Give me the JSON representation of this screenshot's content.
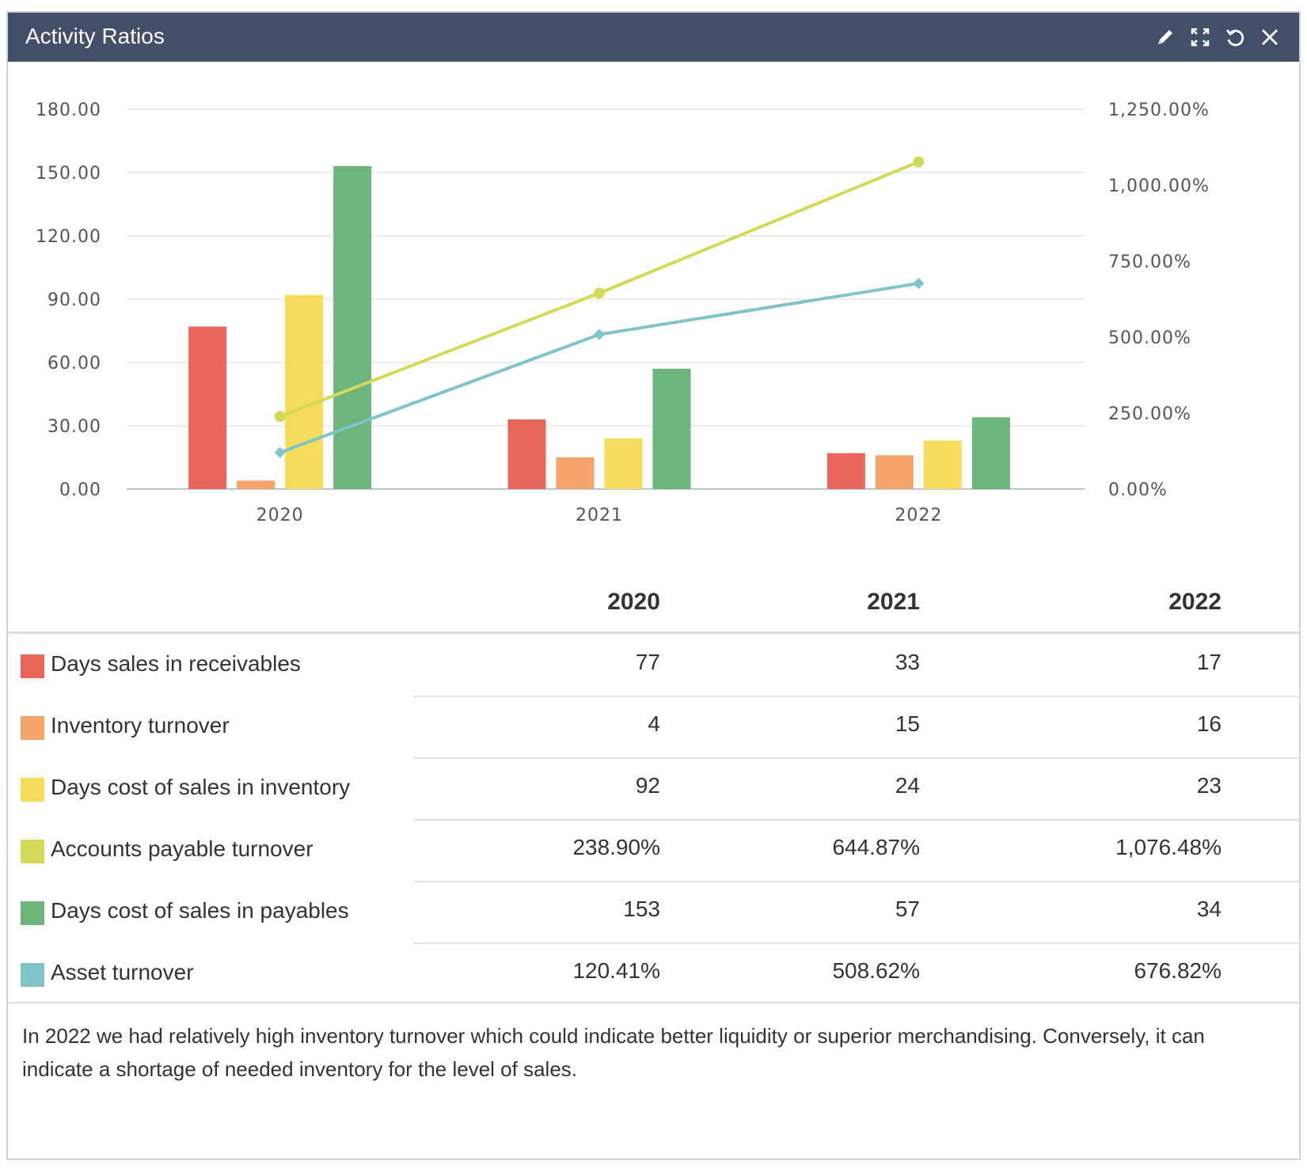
{
  "widget": {
    "title": "Activity Ratios",
    "icons": [
      "pencil-icon",
      "expand-icon",
      "undo-icon",
      "close-icon"
    ]
  },
  "chart_data": {
    "type": "bar",
    "categories": [
      "2020",
      "2021",
      "2022"
    ],
    "left_axis": {
      "ticks": [
        "0.00",
        "30.00",
        "60.00",
        "90.00",
        "120.00",
        "150.00",
        "180.00"
      ],
      "ylim": [
        0,
        180
      ]
    },
    "right_axis": {
      "ticks": [
        "0.00%",
        "250.00%",
        "500.00%",
        "750.00%",
        "1,000.00%",
        "1,250.00%"
      ],
      "ylim": [
        0,
        1250
      ]
    },
    "grid": true,
    "bar_series": [
      {
        "name": "Days sales in receivables",
        "color": "#e8675a",
        "values": [
          77,
          33,
          17
        ]
      },
      {
        "name": "Inventory turnover",
        "color": "#f5a56a",
        "values": [
          4,
          15,
          16
        ]
      },
      {
        "name": "Days cost of sales in inventory",
        "color": "#f5dc5a",
        "values": [
          92,
          24,
          23
        ]
      },
      {
        "name": "Days cost of sales in payables",
        "color": "#6db57d",
        "values": [
          153,
          57,
          34
        ]
      }
    ],
    "line_series": [
      {
        "name": "Accounts payable turnover",
        "color": "#d4d957",
        "values": [
          238.9,
          644.87,
          1076.48
        ],
        "axis": "right"
      },
      {
        "name": "Asset turnover",
        "color": "#7fc4c9",
        "values": [
          120.41,
          508.62,
          676.82
        ],
        "axis": "right"
      }
    ]
  },
  "table": {
    "years": [
      "2020",
      "2021",
      "2022"
    ],
    "rows": [
      {
        "label": "Days sales in receivables",
        "color": "#e8675a",
        "values": [
          "77",
          "33",
          "17"
        ]
      },
      {
        "label": "Inventory turnover",
        "color": "#f5a56a",
        "values": [
          "4",
          "15",
          "16"
        ]
      },
      {
        "label": "Days cost of sales in inventory",
        "color": "#f5dc5a",
        "values": [
          "92",
          "24",
          "23"
        ]
      },
      {
        "label": "Accounts payable turnover",
        "color": "#d4d957",
        "values": [
          "238.90%",
          "644.87%",
          "1,076.48%"
        ]
      },
      {
        "label": "Days cost of sales in payables",
        "color": "#6db57d",
        "values": [
          "153",
          "57",
          "34"
        ]
      },
      {
        "label": "Asset turnover",
        "color": "#7fc4c9",
        "values": [
          "120.41%",
          "508.62%",
          "676.82%"
        ]
      }
    ]
  },
  "footer": {
    "text": "In 2022 we had relatively high inventory turnover which could indicate better liquidity or superior merchandising. Conversely, it can indicate a shortage of needed inventory for the level of sales."
  }
}
